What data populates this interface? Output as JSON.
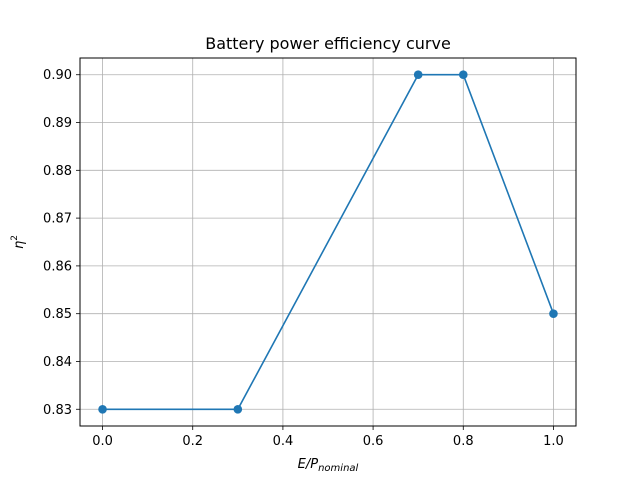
{
  "chart_data": {
    "type": "line",
    "title": "Battery power efficiency curve",
    "xlabel": {
      "base": "E/P",
      "subscript": "nominal"
    },
    "ylabel": {
      "base": "η",
      "superscript": "2"
    },
    "x": [
      0.0,
      0.3,
      0.7,
      0.8,
      1.0
    ],
    "series": [
      {
        "values": [
          0.83,
          0.83,
          0.9,
          0.9,
          0.85
        ]
      }
    ],
    "xlim": [
      -0.05,
      1.05
    ],
    "ylim": [
      0.8265,
      0.9035
    ],
    "xticks": [
      0.0,
      0.2,
      0.4,
      0.6,
      0.8,
      1.0
    ],
    "xtick_labels": [
      "0.0",
      "0.2",
      "0.4",
      "0.6",
      "0.8",
      "1.0"
    ],
    "yticks": [
      0.83,
      0.84,
      0.85,
      0.86,
      0.87,
      0.88,
      0.89,
      0.9
    ],
    "ytick_labels": [
      "0.83",
      "0.84",
      "0.85",
      "0.86",
      "0.87",
      "0.88",
      "0.89",
      "0.90"
    ],
    "grid": true,
    "markers": true,
    "colors": {
      "line": "#1f77b4",
      "grid": "#b0b0b0",
      "axis": "#000000"
    }
  }
}
